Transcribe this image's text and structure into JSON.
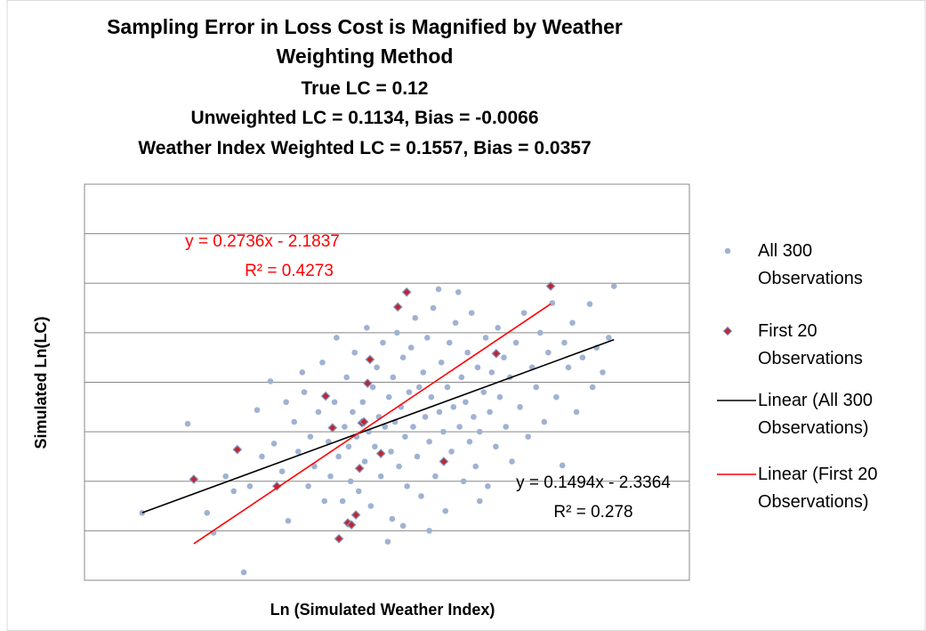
{
  "chart_data": {
    "type": "scatter",
    "title": "Sampling Error in Loss Cost is Magnified by Weather Weighting Method",
    "subtitles": [
      "True LC = 0.12",
      "Unweighted LC = 0.1134, Bias = -0.0066",
      "Weather Index Weighted LC = 0.1557, Bias = 0.0357"
    ],
    "x_label": "Ln (Simulated Weather Index)",
    "y_label": "Simulated Ln(LC)",
    "xlim": [
      -8,
      7
    ],
    "ylim": [
      -4,
      0
    ],
    "yticks": [
      -4,
      -3.5,
      -3,
      -2.5,
      -2,
      -1.5,
      -1,
      -0.5,
      0
    ],
    "grid": true,
    "legend": "right",
    "series": [
      {
        "name": "All 300 Observations",
        "color": "#a0b2d2",
        "marker": "circle",
        "x": [
          -6.57,
          -5.44,
          -4.96,
          -4.8,
          -4.05,
          -3.72,
          -3.39,
          -4.5,
          -4.3,
          -3.9,
          -3.6,
          -3.3,
          -3.1,
          -2.95,
          -2.8,
          -2.7,
          -2.55,
          -2.45,
          -2.4,
          -2.3,
          -2.2,
          -2.1,
          -2.05,
          -1.95,
          -1.9,
          -1.8,
          -1.75,
          -1.7,
          -1.6,
          -1.55,
          -1.5,
          -1.45,
          -1.4,
          -1.35,
          -1.3,
          -1.25,
          -1.2,
          -1.1,
          -1.05,
          -1,
          -0.95,
          -0.9,
          -0.85,
          -0.8,
          -0.75,
          -0.7,
          -0.65,
          -0.6,
          -0.55,
          -0.48,
          -0.45,
          -0.4,
          -0.37,
          -0.35,
          -0.3,
          -0.25,
          -0.2,
          -0.15,
          -0.1,
          -0.05,
          0,
          0.05,
          0.1,
          0.15,
          0.2,
          0.25,
          0.3,
          0.35,
          0.4,
          0.45,
          0.5,
          0.55,
          0.6,
          0.65,
          0.7,
          0.78,
          0.8,
          0.85,
          0.9,
          0.95,
          1,
          1.05,
          1.1,
          1.15,
          1.2,
          1.27,
          1.3,
          1.35,
          1.4,
          1.45,
          1.5,
          1.55,
          1.6,
          1.65,
          1.7,
          1.75,
          1.8,
          1.9,
          1.95,
          2,
          2.05,
          2.1,
          2.2,
          2.25,
          2.3,
          2.4,
          2.45,
          2.55,
          2.6,
          2.7,
          2.8,
          2.9,
          3,
          3.1,
          3.2,
          3.3,
          3.4,
          3.5,
          3.6,
          3.7,
          3.85,
          3.9,
          4,
          4.1,
          4.2,
          4.35,
          4.53,
          4.7,
          4.85,
          5.13,
          5,
          4.6,
          -2.6,
          -3,
          -0.1,
          0.55,
          1.8
        ],
        "y": [
          -3.32,
          -2.42,
          -3.32,
          -3.52,
          -3.92,
          -2.28,
          -1.99,
          -2.95,
          -3.1,
          -3.05,
          -2.75,
          -2.62,
          -2.9,
          -3.4,
          -2.4,
          -2.7,
          -2.1,
          -3.05,
          -2.55,
          -2.85,
          -2.3,
          -1.8,
          -3.2,
          -2.6,
          -2.95,
          -2.2,
          -1.55,
          -2.75,
          -3.2,
          -2.45,
          -1.95,
          -2.65,
          -3,
          -2.3,
          -1.7,
          -2.55,
          -3.1,
          -2.2,
          -2.8,
          -1.45,
          -2.5,
          -3.25,
          -2.05,
          -2.65,
          -1.85,
          -2.35,
          -2.95,
          -1.6,
          -2.45,
          -3.61,
          -2.15,
          -2.7,
          -3.38,
          -1.95,
          -2.4,
          -1.5,
          -2.85,
          -2.25,
          -1.75,
          -2.55,
          -3.05,
          -2.1,
          -1.65,
          -2.45,
          -1.35,
          -2.75,
          -2.05,
          -3.15,
          -1.9,
          -2.35,
          -1.55,
          -2.6,
          -2.15,
          -1.25,
          -2.95,
          -1.06,
          -2.3,
          -1.8,
          -2.5,
          -3.3,
          -2.05,
          -1.6,
          -2.7,
          -2.25,
          -1.4,
          -1.09,
          -2.45,
          -1.95,
          -3,
          -2.2,
          -1.7,
          -2.6,
          -1.3,
          -2.35,
          -2.85,
          -1.85,
          -2.5,
          -2.1,
          -1.55,
          -3.05,
          -2.3,
          -1.9,
          -2.65,
          -1.45,
          -2.15,
          -1.75,
          -2.45,
          -1.95,
          -2.8,
          -1.6,
          -2.25,
          -1.3,
          -2.55,
          -1.85,
          -2.05,
          -1.5,
          -2.4,
          -1.7,
          -1.2,
          -2.15,
          -2.84,
          -1.6,
          -1.85,
          -1.4,
          -2.3,
          -1.75,
          -1.21,
          -1.65,
          -1.9,
          -1.03,
          -1.55,
          -2.05,
          -1.9,
          -2.2,
          -3.45,
          -3.5,
          -3.2
        ],
        "trendline": {
          "name": "Linear (All 300 Observations)",
          "color": "#000000",
          "slope": 0.1494,
          "intercept": -2.3364,
          "equation": "y = 0.1494x - 2.3364",
          "r2": "R² = 0.278"
        }
      },
      {
        "name": "First 20 Observations",
        "color": "#c0272d",
        "marker": "diamond",
        "x": [
          -5.29,
          -4.21,
          -3.23,
          -2.02,
          -1.85,
          -1.69,
          -1.47,
          -1.27,
          -1.18,
          -1.12,
          -0.98,
          -0.92,
          -0.65,
          -0.23,
          -0.01,
          0.91,
          2.21,
          3.56,
          -1.38,
          -1.07
        ],
        "y": [
          -2.98,
          -2.68,
          -3.05,
          -2.14,
          -2.46,
          -3.58,
          -3.42,
          -3.34,
          -2.87,
          -2.41,
          -2.01,
          -1.77,
          -2.72,
          -1.24,
          -1.09,
          -2.8,
          -1.71,
          -1.03,
          -3.44,
          -2.4
        ],
        "trendline": {
          "name": "Linear (First 20 Observations)",
          "color": "#ff0000",
          "slope": 0.2736,
          "intercept": -2.1837,
          "equation": "y = 0.2736x - 2.1837",
          "r2": "R² = 0.4273"
        }
      }
    ]
  }
}
